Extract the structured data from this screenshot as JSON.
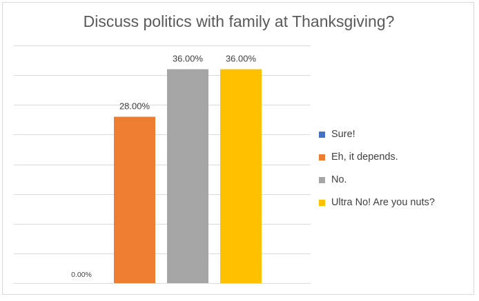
{
  "chart_data": {
    "type": "bar",
    "title": "Discuss politics with family at Thanksgiving?",
    "xlabel": "",
    "ylabel": "",
    "ylim": [
      0,
      0.4
    ],
    "grid": true,
    "legend_position": "right",
    "series": [
      {
        "name": "Sure!",
        "value": 0.0,
        "label": "0.00%",
        "color": "#4472c4"
      },
      {
        "name": "Eh, it depends.",
        "value": 0.28,
        "label": "28.00%",
        "color": "#ed7d31"
      },
      {
        "name": "No.",
        "value": 0.36,
        "label": "36.00%",
        "color": "#a5a5a5"
      },
      {
        "name": "Ultra No!  Are you nuts?",
        "value": 0.36,
        "label": "36.00%",
        "color": "#ffc000"
      }
    ]
  }
}
